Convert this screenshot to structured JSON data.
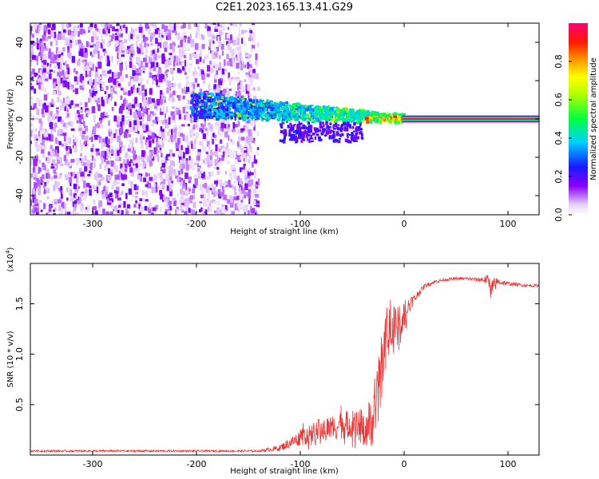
{
  "title": "C2E1.2023.165.13.41.G29",
  "chart_data": [
    {
      "type": "heatmap",
      "name": "spectrogram",
      "xlabel": "Height of straight line (km)",
      "ylabel": "Frequency (Hz)",
      "xlim": [
        -360,
        130
      ],
      "ylim": [
        -50,
        50
      ],
      "xticks": [
        -300,
        -200,
        -100,
        0,
        100
      ],
      "xtick_labels": [
        "-300",
        "-200",
        "-100",
        "0",
        "100"
      ],
      "yticks": [
        -40,
        -20,
        0,
        20,
        40
      ],
      "ytick_labels": [
        "-40",
        "-20",
        "0",
        "20",
        "40"
      ],
      "colorbar": {
        "label": "Normalized spectral amplitude",
        "range": [
          0,
          1
        ],
        "ticks": [
          0.0,
          0.2,
          0.4,
          0.6,
          0.8
        ],
        "tick_labels": [
          "0.0",
          "0.2",
          "0.4",
          "0.6",
          "0.8"
        ],
        "colormap": [
          "#ffffff",
          "#d9b3ff",
          "#7700ff",
          "#1a1aff",
          "#00d2ff",
          "#00ff44",
          "#ffff00",
          "#ff8800",
          "#ff0000",
          "#ff0077"
        ]
      },
      "regions": [
        {
          "label": "broadband noise",
          "x_range": [
            -360,
            -140
          ],
          "y_range": [
            -50,
            50
          ],
          "amplitude": 0.1
        },
        {
          "label": "carrier band",
          "x_range": [
            -200,
            130
          ],
          "y_center": 0,
          "trend": "frequency converges from ~8 Hz at -200 km to 0 Hz at 0 km",
          "amplitude_range": [
            0.2,
            1.0
          ]
        },
        {
          "label": "steady carrier",
          "x_range": [
            0,
            130
          ],
          "y_center": 0,
          "amplitude": 0.95
        }
      ]
    },
    {
      "type": "line",
      "name": "snr",
      "xlabel": "Height of straight line (km)",
      "ylabel": "SNR (10 * v/v)",
      "y_multiplier": "(x10",
      "y_multiplier_exp": "4",
      "y_multiplier_close": ")",
      "xlim": [
        -360,
        130
      ],
      "ylim": [
        0,
        1.9
      ],
      "xticks": [
        -300,
        -200,
        -100,
        0,
        100
      ],
      "xtick_labels": [
        "-300",
        "-200",
        "-100",
        "0",
        "100"
      ],
      "yticks": [
        0.5,
        1.0,
        1.5
      ],
      "ytick_labels": [
        "0.5",
        "1.0",
        "1.5"
      ],
      "color": "#ee3333",
      "series": [
        {
          "name": "SNR",
          "x": [
            -360,
            -300,
            -200,
            -140,
            -120,
            -100,
            -80,
            -60,
            -50,
            -40,
            -30,
            -25,
            -20,
            -15,
            -10,
            -5,
            0,
            5,
            10,
            15,
            20,
            25,
            30,
            40,
            50,
            60,
            70,
            80,
            85,
            90,
            100,
            110,
            120,
            130
          ],
          "y": [
            0.04,
            0.04,
            0.04,
            0.04,
            0.07,
            0.17,
            0.25,
            0.3,
            0.3,
            0.28,
            0.33,
            0.6,
            1.0,
            1.2,
            1.25,
            1.25,
            1.4,
            1.5,
            1.55,
            1.62,
            1.68,
            1.7,
            1.72,
            1.74,
            1.75,
            1.75,
            1.74,
            1.74,
            1.66,
            1.72,
            1.7,
            1.69,
            1.68,
            1.68
          ],
          "noise_amplitude": [
            0.01,
            0.01,
            0.01,
            0.01,
            0.03,
            0.08,
            0.12,
            0.14,
            0.14,
            0.18,
            0.25,
            0.35,
            0.3,
            0.25,
            0.25,
            0.22,
            0.18,
            0.08,
            0.05,
            0.03,
            0.02,
            0.02,
            0.02,
            0.015,
            0.015,
            0.015,
            0.02,
            0.05,
            0.1,
            0.04,
            0.02,
            0.015,
            0.015,
            0.015
          ]
        }
      ]
    }
  ]
}
